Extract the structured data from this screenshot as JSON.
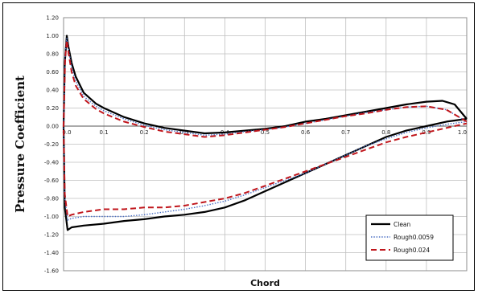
{
  "chart_data": {
    "type": "line",
    "xlabel": "Chord",
    "ylabel": "Pressure Coefficient",
    "xlim": [
      0.0,
      1.0
    ],
    "ylim": [
      -1.6,
      1.2
    ],
    "x_ticks": [
      "0.0",
      "0.1",
      "0.2",
      "0.3",
      "0.4",
      "0.5",
      "0.6",
      "0.7",
      "0.8",
      "0.9",
      "1.0"
    ],
    "y_ticks": [
      "1.20",
      "1.00",
      "0.80",
      "0.60",
      "0.40",
      "0.20",
      "0.00",
      "-0.20",
      "-0.40",
      "-0.60",
      "-0.80",
      "-1.00",
      "-1.20",
      "-1.40",
      "-1.60"
    ],
    "grid": true,
    "legend_position": "bottom-right",
    "series": [
      {
        "name": "Clean",
        "color": "#000000",
        "style": "solid",
        "upper": [
          [
            0.0,
            0.0
          ],
          [
            0.003,
            0.7
          ],
          [
            0.008,
            1.0
          ],
          [
            0.012,
            0.88
          ],
          [
            0.02,
            0.7
          ],
          [
            0.03,
            0.55
          ],
          [
            0.05,
            0.37
          ],
          [
            0.08,
            0.25
          ],
          [
            0.1,
            0.2
          ],
          [
            0.15,
            0.1
          ],
          [
            0.2,
            0.03
          ],
          [
            0.25,
            -0.02
          ],
          [
            0.3,
            -0.05
          ],
          [
            0.35,
            -0.08
          ],
          [
            0.4,
            -0.07
          ],
          [
            0.45,
            -0.05
          ],
          [
            0.5,
            -0.03
          ],
          [
            0.55,
            0.0
          ],
          [
            0.6,
            0.05
          ],
          [
            0.65,
            0.08
          ],
          [
            0.7,
            0.12
          ],
          [
            0.75,
            0.16
          ],
          [
            0.8,
            0.2
          ],
          [
            0.85,
            0.24
          ],
          [
            0.9,
            0.27
          ],
          [
            0.94,
            0.28
          ],
          [
            0.97,
            0.24
          ],
          [
            1.0,
            0.08
          ]
        ],
        "lower": [
          [
            0.0,
            0.0
          ],
          [
            0.003,
            -0.9
          ],
          [
            0.01,
            -1.15
          ],
          [
            0.02,
            -1.12
          ],
          [
            0.05,
            -1.1
          ],
          [
            0.1,
            -1.08
          ],
          [
            0.15,
            -1.05
          ],
          [
            0.2,
            -1.03
          ],
          [
            0.25,
            -1.0
          ],
          [
            0.3,
            -0.98
          ],
          [
            0.35,
            -0.95
          ],
          [
            0.4,
            -0.9
          ],
          [
            0.45,
            -0.82
          ],
          [
            0.5,
            -0.72
          ],
          [
            0.55,
            -0.62
          ],
          [
            0.6,
            -0.52
          ],
          [
            0.65,
            -0.42
          ],
          [
            0.7,
            -0.32
          ],
          [
            0.75,
            -0.22
          ],
          [
            0.8,
            -0.12
          ],
          [
            0.85,
            -0.05
          ],
          [
            0.9,
            0.0
          ],
          [
            0.95,
            0.05
          ],
          [
            1.0,
            0.08
          ]
        ]
      },
      {
        "name": "Rough0.0059",
        "color": "#4a6fc4",
        "style": "dotted",
        "upper": [
          [
            0.0,
            0.0
          ],
          [
            0.004,
            0.8
          ],
          [
            0.008,
            0.97
          ],
          [
            0.012,
            0.86
          ],
          [
            0.02,
            0.65
          ],
          [
            0.03,
            0.5
          ],
          [
            0.05,
            0.33
          ],
          [
            0.08,
            0.22
          ],
          [
            0.1,
            0.17
          ],
          [
            0.15,
            0.08
          ],
          [
            0.2,
            0.01
          ],
          [
            0.25,
            -0.04
          ],
          [
            0.3,
            -0.07
          ],
          [
            0.35,
            -0.1
          ],
          [
            0.4,
            -0.09
          ],
          [
            0.45,
            -0.06
          ],
          [
            0.5,
            -0.04
          ],
          [
            0.55,
            -0.01
          ],
          [
            0.6,
            0.03
          ],
          [
            0.65,
            0.07
          ],
          [
            0.7,
            0.11
          ],
          [
            0.75,
            0.15
          ],
          [
            0.8,
            0.18
          ],
          [
            0.85,
            0.21
          ],
          [
            0.9,
            0.22
          ],
          [
            0.95,
            0.18
          ],
          [
            1.0,
            0.05
          ]
        ],
        "lower": [
          [
            0.0,
            0.0
          ],
          [
            0.003,
            -0.8
          ],
          [
            0.01,
            -1.04
          ],
          [
            0.02,
            -1.02
          ],
          [
            0.05,
            -1.0
          ],
          [
            0.1,
            -1.0
          ],
          [
            0.15,
            -1.0
          ],
          [
            0.2,
            -0.98
          ],
          [
            0.25,
            -0.95
          ],
          [
            0.3,
            -0.92
          ],
          [
            0.35,
            -0.88
          ],
          [
            0.4,
            -0.83
          ],
          [
            0.45,
            -0.76
          ],
          [
            0.5,
            -0.68
          ],
          [
            0.55,
            -0.6
          ],
          [
            0.6,
            -0.52
          ],
          [
            0.65,
            -0.42
          ],
          [
            0.7,
            -0.32
          ],
          [
            0.75,
            -0.22
          ],
          [
            0.8,
            -0.14
          ],
          [
            0.85,
            -0.07
          ],
          [
            0.9,
            -0.02
          ],
          [
            0.95,
            0.02
          ],
          [
            1.0,
            0.05
          ]
        ]
      },
      {
        "name": "Rough0.024",
        "color": "#c0161c",
        "style": "dashed",
        "upper": [
          [
            0.0,
            0.0
          ],
          [
            0.004,
            0.75
          ],
          [
            0.008,
            0.95
          ],
          [
            0.012,
            0.82
          ],
          [
            0.02,
            0.6
          ],
          [
            0.03,
            0.45
          ],
          [
            0.05,
            0.3
          ],
          [
            0.08,
            0.19
          ],
          [
            0.1,
            0.14
          ],
          [
            0.15,
            0.05
          ],
          [
            0.2,
            -0.01
          ],
          [
            0.25,
            -0.06
          ],
          [
            0.3,
            -0.09
          ],
          [
            0.35,
            -0.12
          ],
          [
            0.4,
            -0.1
          ],
          [
            0.45,
            -0.07
          ],
          [
            0.5,
            -0.04
          ],
          [
            0.55,
            -0.01
          ],
          [
            0.6,
            0.03
          ],
          [
            0.65,
            0.07
          ],
          [
            0.7,
            0.11
          ],
          [
            0.75,
            0.14
          ],
          [
            0.8,
            0.18
          ],
          [
            0.85,
            0.21
          ],
          [
            0.9,
            0.22
          ],
          [
            0.95,
            0.18
          ],
          [
            1.0,
            0.05
          ]
        ],
        "lower": [
          [
            0.0,
            0.0
          ],
          [
            0.003,
            -0.75
          ],
          [
            0.01,
            -1.0
          ],
          [
            0.02,
            -0.98
          ],
          [
            0.05,
            -0.95
          ],
          [
            0.1,
            -0.92
          ],
          [
            0.15,
            -0.92
          ],
          [
            0.2,
            -0.9
          ],
          [
            0.25,
            -0.9
          ],
          [
            0.3,
            -0.88
          ],
          [
            0.35,
            -0.84
          ],
          [
            0.4,
            -0.8
          ],
          [
            0.45,
            -0.74
          ],
          [
            0.5,
            -0.66
          ],
          [
            0.55,
            -0.58
          ],
          [
            0.6,
            -0.5
          ],
          [
            0.65,
            -0.42
          ],
          [
            0.7,
            -0.34
          ],
          [
            0.75,
            -0.26
          ],
          [
            0.8,
            -0.18
          ],
          [
            0.85,
            -0.12
          ],
          [
            0.9,
            -0.07
          ],
          [
            0.95,
            -0.02
          ],
          [
            1.0,
            0.03
          ]
        ]
      }
    ]
  }
}
